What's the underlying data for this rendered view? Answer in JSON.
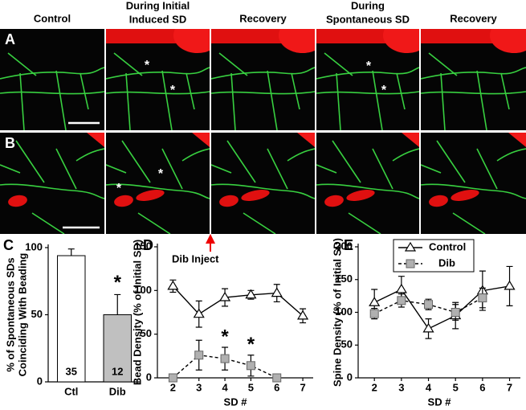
{
  "figure": {
    "headers": [
      [
        "Control"
      ],
      [
        "During Initial",
        "Induced SD"
      ],
      [
        "Recovery"
      ],
      [
        "During Spontaneous SD"
      ],
      [
        "Recovery"
      ]
    ],
    "headers_two_line": [
      [
        "Control"
      ],
      [
        "During Initial",
        "Induced SD"
      ],
      [
        "Recovery"
      ],
      [
        "During",
        "Spontaneous SD"
      ],
      [
        "Recovery"
      ]
    ],
    "rows": [
      {
        "label": "A",
        "stars": [
          [],
          [
            "*",
            "*"
          ],
          [],
          [
            "*",
            "*"
          ],
          []
        ]
      },
      {
        "label": "B",
        "stars": [
          [],
          [
            "*",
            "*"
          ],
          [],
          [],
          []
        ]
      }
    ]
  },
  "chart_data": [
    {
      "type": "bar",
      "label": "C",
      "ylabel": [
        "% of Spontaneous SDs",
        "Coinciding With Beading"
      ],
      "categories": [
        "Ctl",
        "Dib"
      ],
      "values": [
        94,
        50
      ],
      "errors": [
        5,
        15
      ],
      "n": [
        35,
        12
      ],
      "colors": [
        "#ffffff",
        "#c0c0c0"
      ],
      "ylim": [
        0,
        100
      ],
      "yticks": [
        0,
        50,
        100
      ],
      "annotations": [
        "*"
      ]
    },
    {
      "type": "line",
      "label": "D",
      "ylabel": "Bead Density (% of Initial SD)",
      "xlabel": "SD #",
      "x": [
        2,
        3,
        4,
        5,
        6,
        7
      ],
      "xlim": [
        1.4,
        7.4
      ],
      "xticks": [
        2,
        3,
        4,
        5,
        6,
        7
      ],
      "ylim": [
        0,
        150
      ],
      "yticks": [
        0,
        50,
        100,
        150
      ],
      "series": [
        {
          "name": "Control",
          "color": "#000000",
          "values": [
            105,
            73,
            92,
            95,
            97,
            71
          ],
          "errors": [
            7,
            15,
            10,
            5,
            10,
            8
          ]
        },
        {
          "name": "Dib",
          "color": "#b0b0b0",
          "values": [
            0,
            26,
            22,
            14,
            0,
            null
          ],
          "errors": [
            0,
            17,
            13,
            12,
            0,
            null
          ]
        }
      ],
      "annotation": "Dib Inject",
      "stars": [
        {
          "text": "*",
          "x": 4
        },
        {
          "text": "*",
          "x": 5
        }
      ]
    },
    {
      "type": "line",
      "label": "E",
      "ylabel": "Spine Density (% of Initial SD)",
      "xlabel": "SD #",
      "x": [
        2,
        3,
        4,
        5,
        6,
        7
      ],
      "xlim": [
        1.4,
        7.4
      ],
      "xticks": [
        2,
        3,
        4,
        5,
        6,
        7
      ],
      "ylim": [
        0,
        200
      ],
      "yticks": [
        0,
        50,
        100,
        150,
        200
      ],
      "legend": "top",
      "series": [
        {
          "name": "Control",
          "color": "#000000",
          "values": [
            115,
            135,
            75,
            95,
            133,
            140
          ],
          "errors": [
            20,
            20,
            15,
            20,
            30,
            30
          ]
        },
        {
          "name": "Dib",
          "color": "#b0b0b0",
          "values": [
            98,
            118,
            112,
            100,
            122,
            null
          ],
          "errors": [
            8,
            10,
            8,
            12,
            15,
            null
          ]
        }
      ]
    }
  ]
}
